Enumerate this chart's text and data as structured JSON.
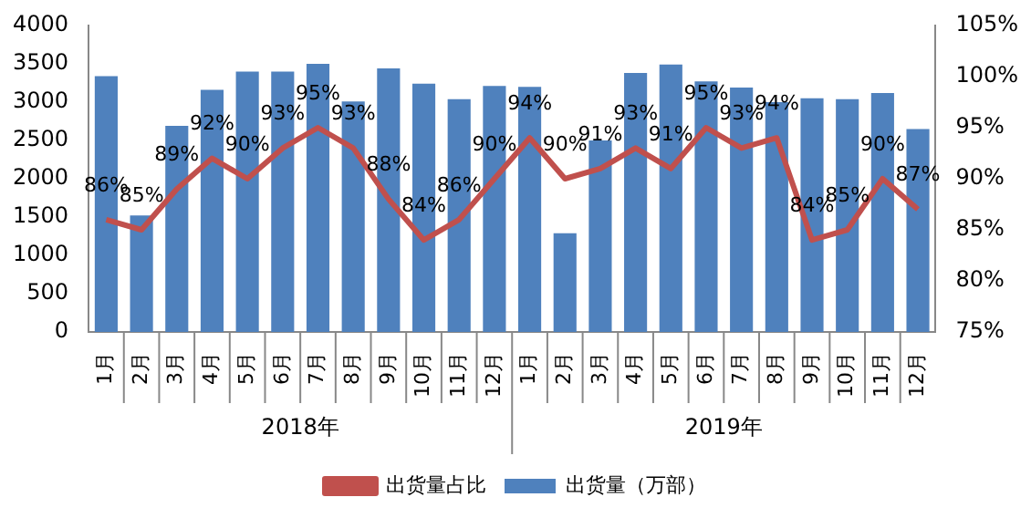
{
  "chart_data": {
    "type": "bar",
    "categories": [
      "1月",
      "2月",
      "3月",
      "4月",
      "5月",
      "6月",
      "7月",
      "8月",
      "9月",
      "10月",
      "11月",
      "12月",
      "1月",
      "2月",
      "3月",
      "4月",
      "5月",
      "6月",
      "7月",
      "8月",
      "9月",
      "10月",
      "11月",
      "12月"
    ],
    "series": [
      {
        "name": "出货量（万部）",
        "color": "#4f81bd",
        "values": [
          3340,
          1520,
          2690,
          3160,
          3400,
          3400,
          3500,
          3010,
          3440,
          3240,
          3040,
          3210,
          3200,
          1290,
          2500,
          3380,
          3490,
          3270,
          3190,
          3000,
          3050,
          3040,
          3120,
          2650
        ]
      },
      {
        "name": "出货量占比",
        "type": "line",
        "axis": "y2",
        "color": "#c0504d",
        "values": [
          86,
          85,
          89,
          92,
          90,
          93,
          95,
          93,
          88,
          84,
          86,
          90,
          94,
          90,
          91,
          93,
          91,
          95,
          93,
          94,
          84,
          85,
          90,
          87
        ],
        "value_labels": [
          "86%",
          "85%",
          "89%",
          "92%",
          "90%",
          "93%",
          "95%",
          "93%",
          "88%",
          "84%",
          "86%",
          "90%",
          "94%",
          "90%",
          "91%",
          "93%",
          "91%",
          "95%",
          "93%",
          "94%",
          "84%",
          "85%",
          "90%",
          "87%"
        ]
      }
    ],
    "ylim": [
      0,
      4000
    ],
    "yticks": [
      0,
      500,
      1000,
      1500,
      2000,
      2500,
      3000,
      3500,
      4000
    ],
    "y2lim": [
      75,
      105
    ],
    "y2ticks": [
      {
        "value": 75,
        "label": "75%"
      },
      {
        "value": 80,
        "label": "80%"
      },
      {
        "value": 85,
        "label": "85%"
      },
      {
        "value": 90,
        "label": "90%"
      },
      {
        "value": 95,
        "label": "95%"
      },
      {
        "value": 100,
        "label": "100%"
      },
      {
        "value": 105,
        "label": "105%"
      }
    ],
    "annotations": [
      "2018年",
      "2019年"
    ],
    "legend": "bottom",
    "marker": "none",
    "line_style": "solid"
  }
}
